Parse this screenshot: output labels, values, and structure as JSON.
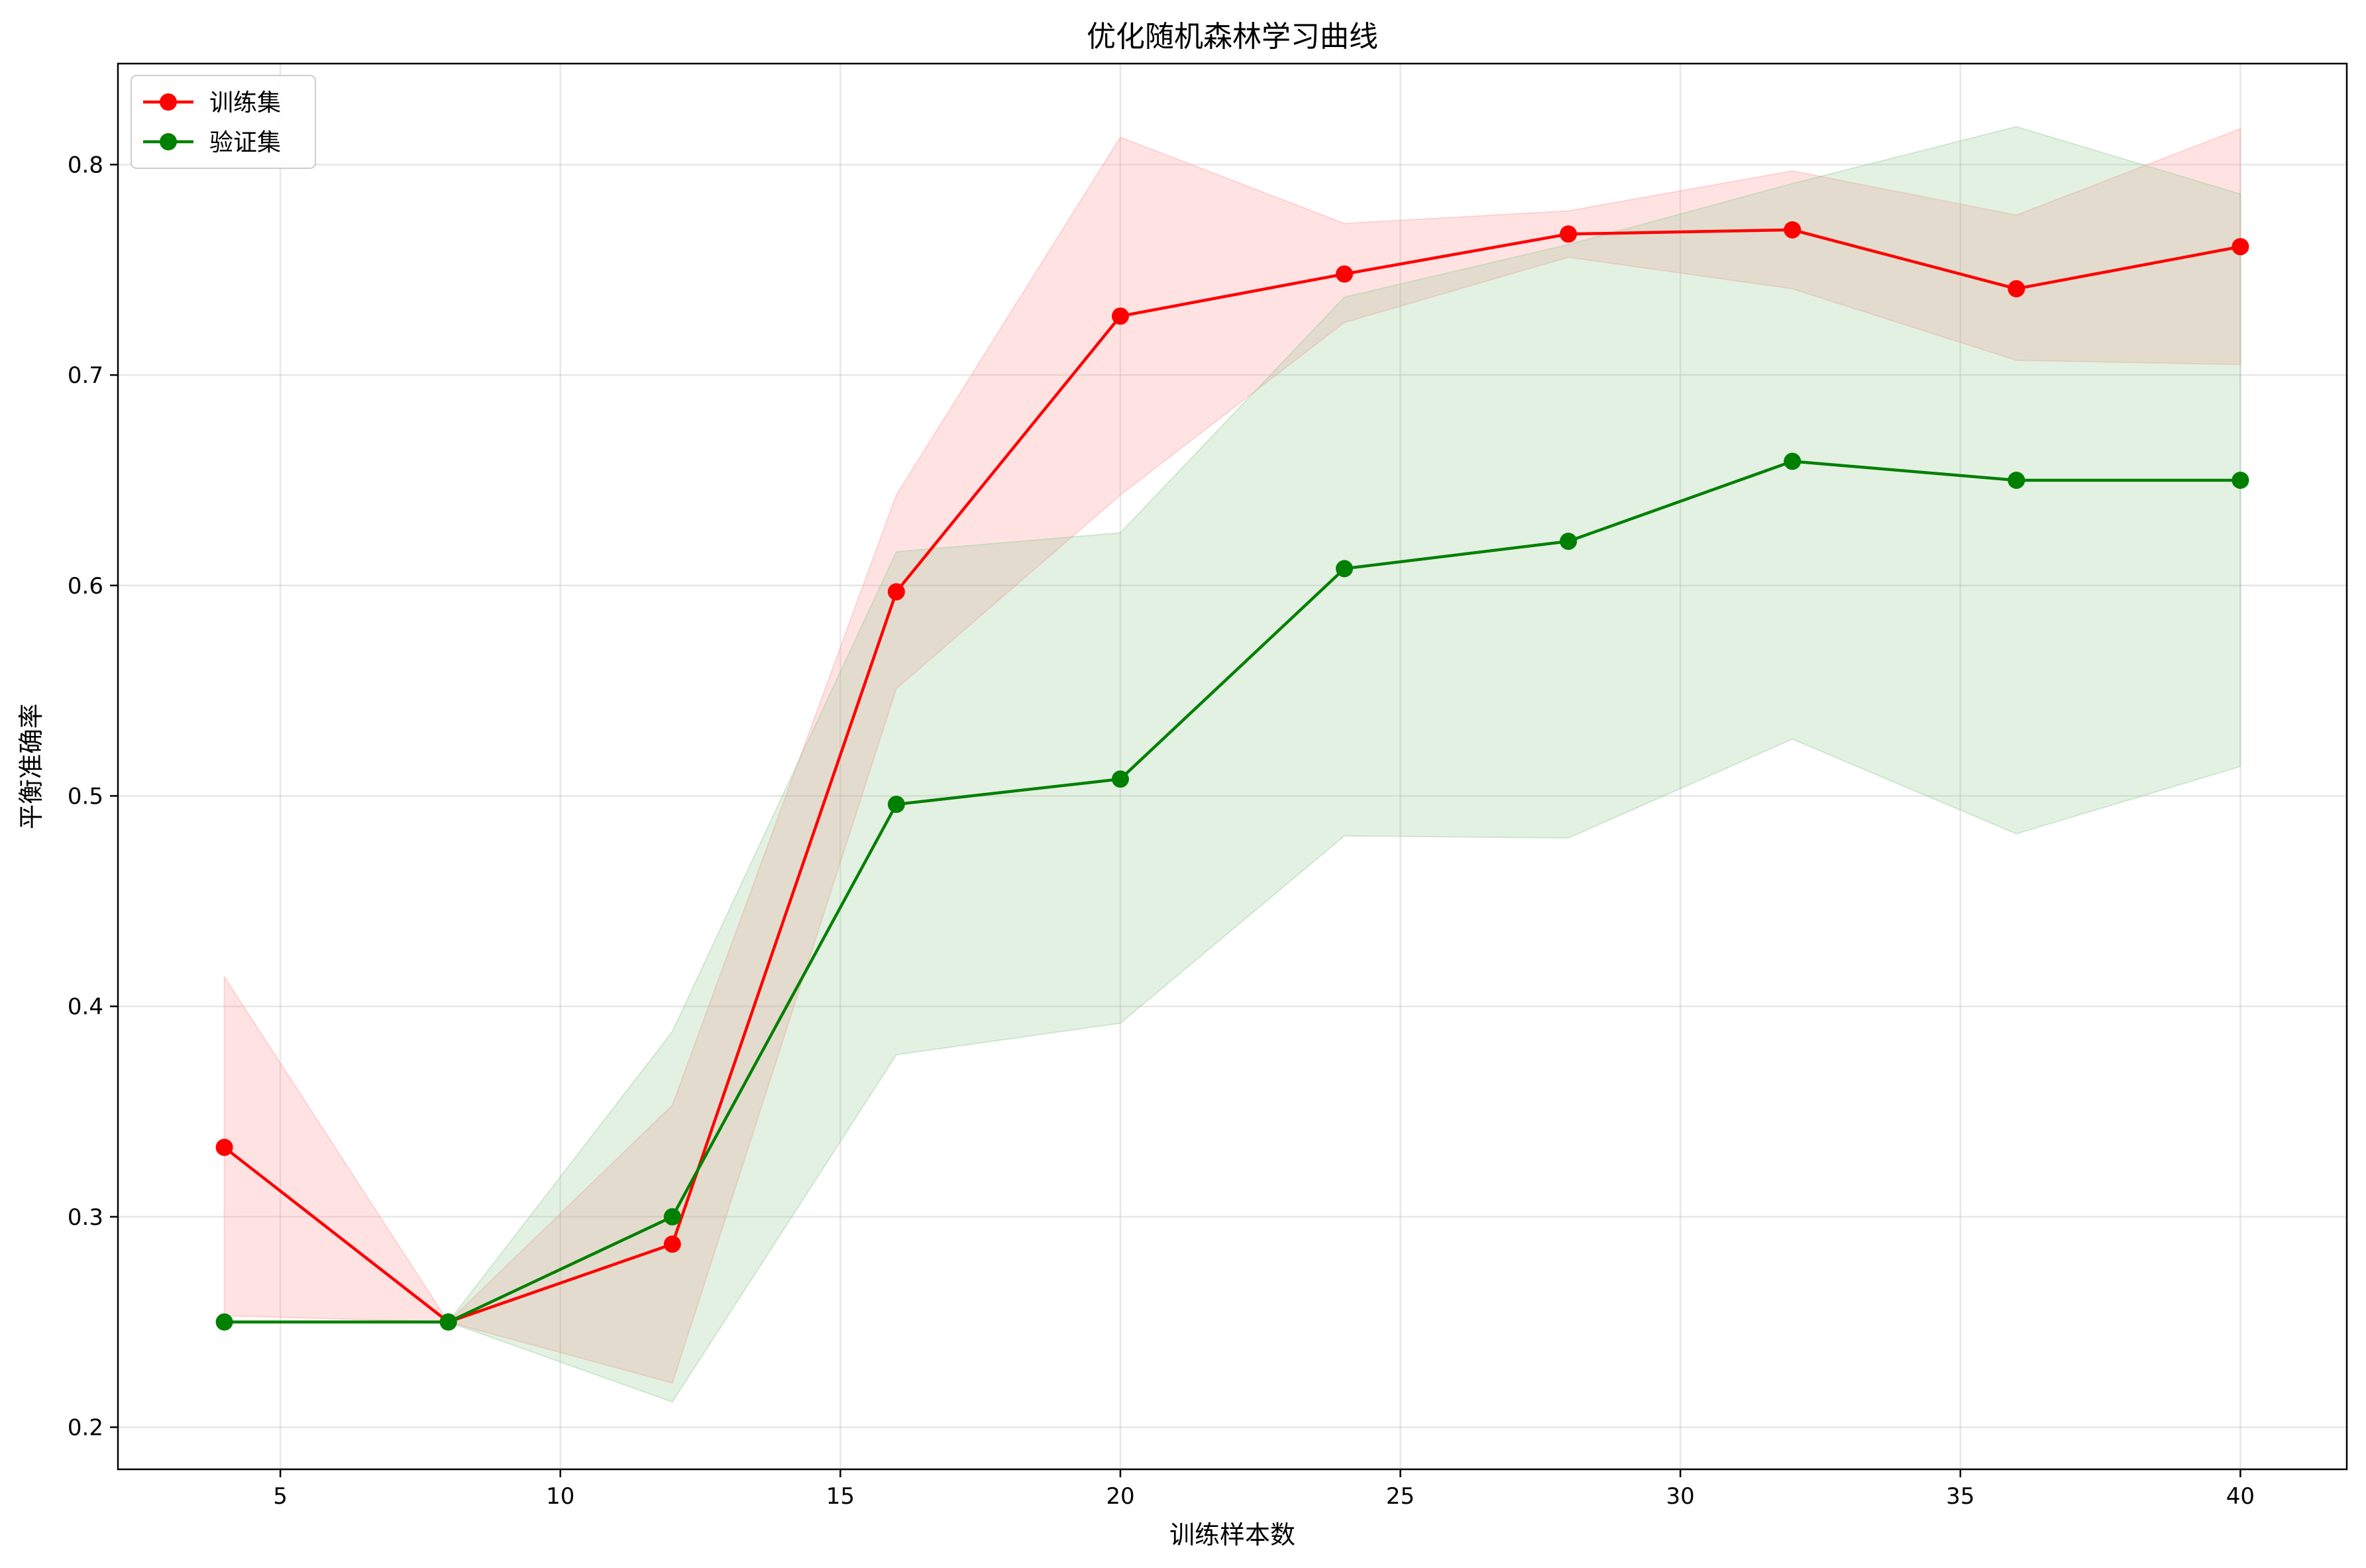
{
  "chart_data": {
    "type": "line",
    "title": "优化随机森林学习曲线",
    "xlabel": "训练样本数",
    "ylabel": "平衡准确率",
    "xlim": [
      2.1,
      41.9
    ],
    "ylim": [
      0.18,
      0.848
    ],
    "xticks": [
      5,
      10,
      15,
      20,
      25,
      30,
      35,
      40
    ],
    "yticks": [
      0.2,
      0.3,
      0.4,
      0.5,
      0.6,
      0.7,
      0.8
    ],
    "grid": true,
    "legend_position": "top-left",
    "x": [
      4,
      8,
      12,
      16,
      20,
      24,
      28,
      32,
      36,
      40
    ],
    "series": [
      {
        "name": "训练集",
        "color": "#ff0000",
        "band_color": "#ff9999",
        "marker": "circle",
        "values": [
          0.333,
          0.25,
          0.287,
          0.597,
          0.728,
          0.748,
          0.767,
          0.769,
          0.741,
          0.761
        ],
        "upper": [
          0.414,
          0.25,
          0.353,
          0.643,
          0.813,
          0.772,
          0.778,
          0.797,
          0.776,
          0.817
        ],
        "lower": [
          0.253,
          0.25,
          0.221,
          0.551,
          0.643,
          0.725,
          0.756,
          0.741,
          0.707,
          0.705
        ]
      },
      {
        "name": "验证集",
        "color": "#008000",
        "band_color": "#90c890",
        "marker": "circle",
        "values": [
          0.25,
          0.25,
          0.3,
          0.496,
          0.508,
          0.608,
          0.621,
          0.659,
          0.65,
          0.65
        ],
        "upper": [
          0.25,
          0.25,
          0.388,
          0.616,
          0.625,
          0.737,
          0.762,
          0.791,
          0.818,
          0.786
        ],
        "lower": [
          0.25,
          0.25,
          0.212,
          0.377,
          0.392,
          0.481,
          0.48,
          0.527,
          0.482,
          0.514
        ]
      }
    ]
  }
}
